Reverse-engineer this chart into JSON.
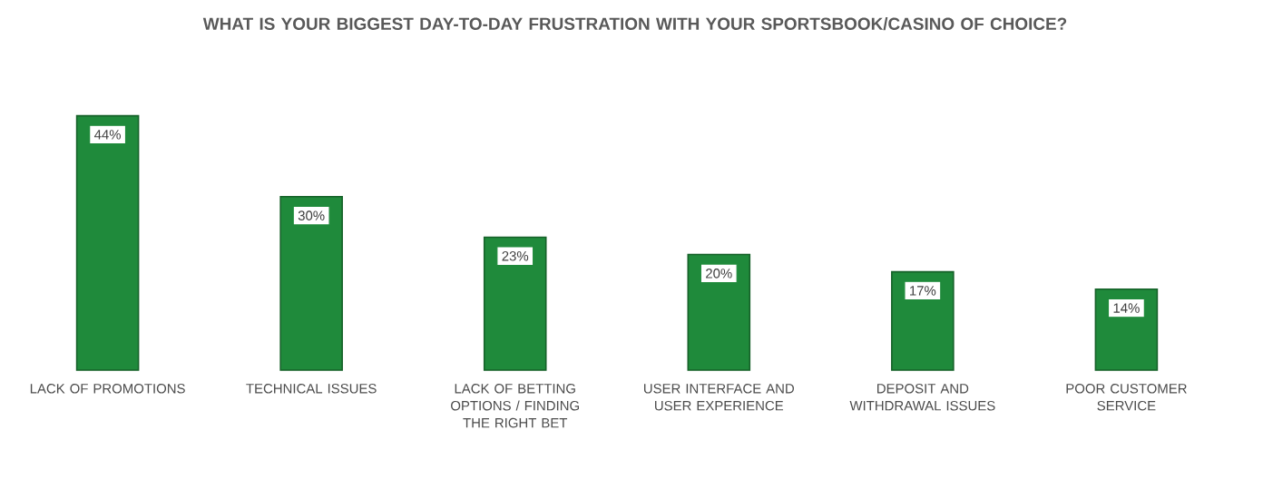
{
  "chart_data": {
    "type": "bar",
    "title": "WHAT IS YOUR BIGGEST DAY-TO-DAY FRUSTRATION WITH YOUR SPORTSBOOK/CASINO OF CHOICE?",
    "categories": [
      "LACK OF PROMOTIONS",
      "TECHNICAL ISSUES",
      "LACK OF BETTING OPTIONS / FINDING THE RIGHT BET",
      "USER INTERFACE AND USER EXPERIENCE",
      "DEPOSIT AND WITHDRAWAL ISSUES",
      "POOR CUSTOMER SERVICE"
    ],
    "values": [
      44,
      30,
      23,
      20,
      17,
      14
    ],
    "color": "#1f8a3b",
    "value_labels": [
      "44%",
      "30%",
      "23%",
      "20%",
      "17%",
      "14%"
    ]
  }
}
